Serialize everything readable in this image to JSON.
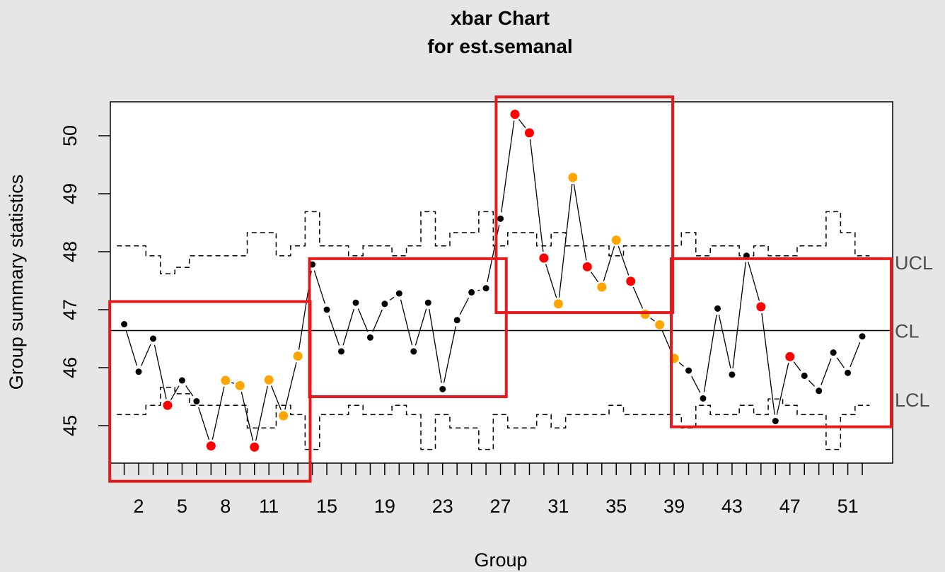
{
  "chart_data": {
    "type": "line",
    "chart_subtype": "xbar control chart",
    "title": "xbar Chart",
    "subtitle": "for est.semanal",
    "xlabel": "Group",
    "ylabel": "Group summary statistics",
    "xlim": [
      0,
      54
    ],
    "ylim": [
      44.3,
      50.6
    ],
    "grid": false,
    "x_tick_labels": [
      2,
      5,
      8,
      11,
      15,
      19,
      23,
      27,
      31,
      35,
      39,
      43,
      47,
      51
    ],
    "y_tick_labels": [
      45,
      46,
      47,
      48,
      49,
      50
    ],
    "center_line": {
      "label": "CL",
      "value": 46.64
    },
    "upper_limit_label": "UCL",
    "lower_limit_label": "LCL",
    "limit_label_values": {
      "UCL": 47.82,
      "CL": 46.64,
      "LCL": 45.45
    },
    "groups": [
      1,
      2,
      3,
      4,
      5,
      6,
      7,
      8,
      9,
      10,
      11,
      12,
      13,
      14,
      15,
      16,
      17,
      18,
      19,
      20,
      21,
      22,
      23,
      24,
      25,
      26,
      27,
      28,
      29,
      30,
      31,
      32,
      33,
      34,
      35,
      36,
      37,
      38,
      39,
      40,
      41,
      42,
      43,
      44,
      45,
      46,
      47,
      48,
      49,
      50,
      51,
      52
    ],
    "values": [
      46.75,
      45.93,
      46.5,
      45.35,
      45.78,
      45.42,
      44.65,
      45.78,
      45.69,
      44.63,
      45.79,
      45.17,
      46.2,
      47.78,
      47.0,
      46.28,
      47.12,
      46.52,
      47.1,
      47.28,
      46.28,
      47.12,
      45.63,
      46.82,
      47.3,
      47.37,
      48.57,
      50.37,
      50.05,
      47.89,
      47.1,
      49.28,
      47.74,
      47.39,
      48.2,
      47.49,
      46.92,
      46.74,
      46.16,
      45.95,
      45.47,
      47.02,
      45.88,
      47.93,
      47.05,
      45.08,
      46.19,
      45.86,
      45.6,
      46.26,
      45.91,
      46.54
    ],
    "point_status": [
      "normal",
      "normal",
      "normal",
      "beyond",
      "normal",
      "normal",
      "beyond",
      "violating",
      "violating",
      "beyond",
      "violating",
      "violating",
      "violating",
      "normal",
      "normal",
      "normal",
      "normal",
      "normal",
      "normal",
      "normal",
      "normal",
      "normal",
      "normal",
      "normal",
      "normal",
      "normal",
      "normal",
      "beyond",
      "beyond",
      "beyond",
      "violating",
      "violating",
      "beyond",
      "violating",
      "violating",
      "beyond",
      "violating",
      "violating",
      "violating",
      "normal",
      "normal",
      "normal",
      "normal",
      "normal",
      "beyond",
      "normal",
      "beyond",
      "normal",
      "normal",
      "normal",
      "normal",
      "normal"
    ],
    "ucl": [
      48.1,
      48.1,
      47.93,
      47.62,
      47.73,
      47.93,
      47.93,
      47.93,
      47.93,
      48.33,
      48.33,
      47.93,
      48.1,
      48.69,
      48.1,
      48.1,
      47.93,
      48.1,
      48.1,
      47.93,
      48.1,
      48.69,
      48.1,
      48.33,
      48.33,
      48.69,
      48.1,
      48.33,
      48.33,
      48.1,
      48.33,
      48.1,
      48.1,
      48.1,
      47.93,
      48.1,
      48.1,
      48.1,
      48.1,
      48.33,
      47.93,
      48.1,
      48.1,
      47.93,
      48.1,
      47.93,
      47.93,
      48.1,
      48.1,
      48.69,
      48.33,
      47.93
    ],
    "lcl": [
      45.19,
      45.19,
      45.35,
      45.66,
      45.55,
      45.35,
      45.35,
      45.35,
      45.35,
      44.96,
      44.96,
      45.35,
      45.19,
      44.59,
      45.19,
      45.19,
      45.35,
      45.19,
      45.19,
      45.35,
      45.19,
      44.59,
      45.19,
      44.96,
      44.96,
      44.59,
      45.19,
      44.96,
      44.96,
      45.19,
      44.96,
      45.19,
      45.19,
      45.19,
      45.35,
      45.19,
      45.19,
      45.19,
      45.19,
      44.96,
      45.35,
      45.19,
      45.19,
      45.35,
      45.19,
      45.46,
      45.35,
      45.19,
      45.19,
      44.59,
      45.19,
      45.35
    ],
    "colors": {
      "normal": "#000000",
      "beyond": "#ff0000",
      "violating": "#ffa500",
      "highlight_box": "#e41a1c",
      "background": "#e6e6e6",
      "plot_background": "#ffffff"
    },
    "highlight_boxes_group_ranges": [
      [
        0,
        13.85
      ],
      [
        13.8,
        27.4
      ],
      [
        26.7,
        38.9
      ],
      [
        38.8,
        54
      ]
    ]
  }
}
